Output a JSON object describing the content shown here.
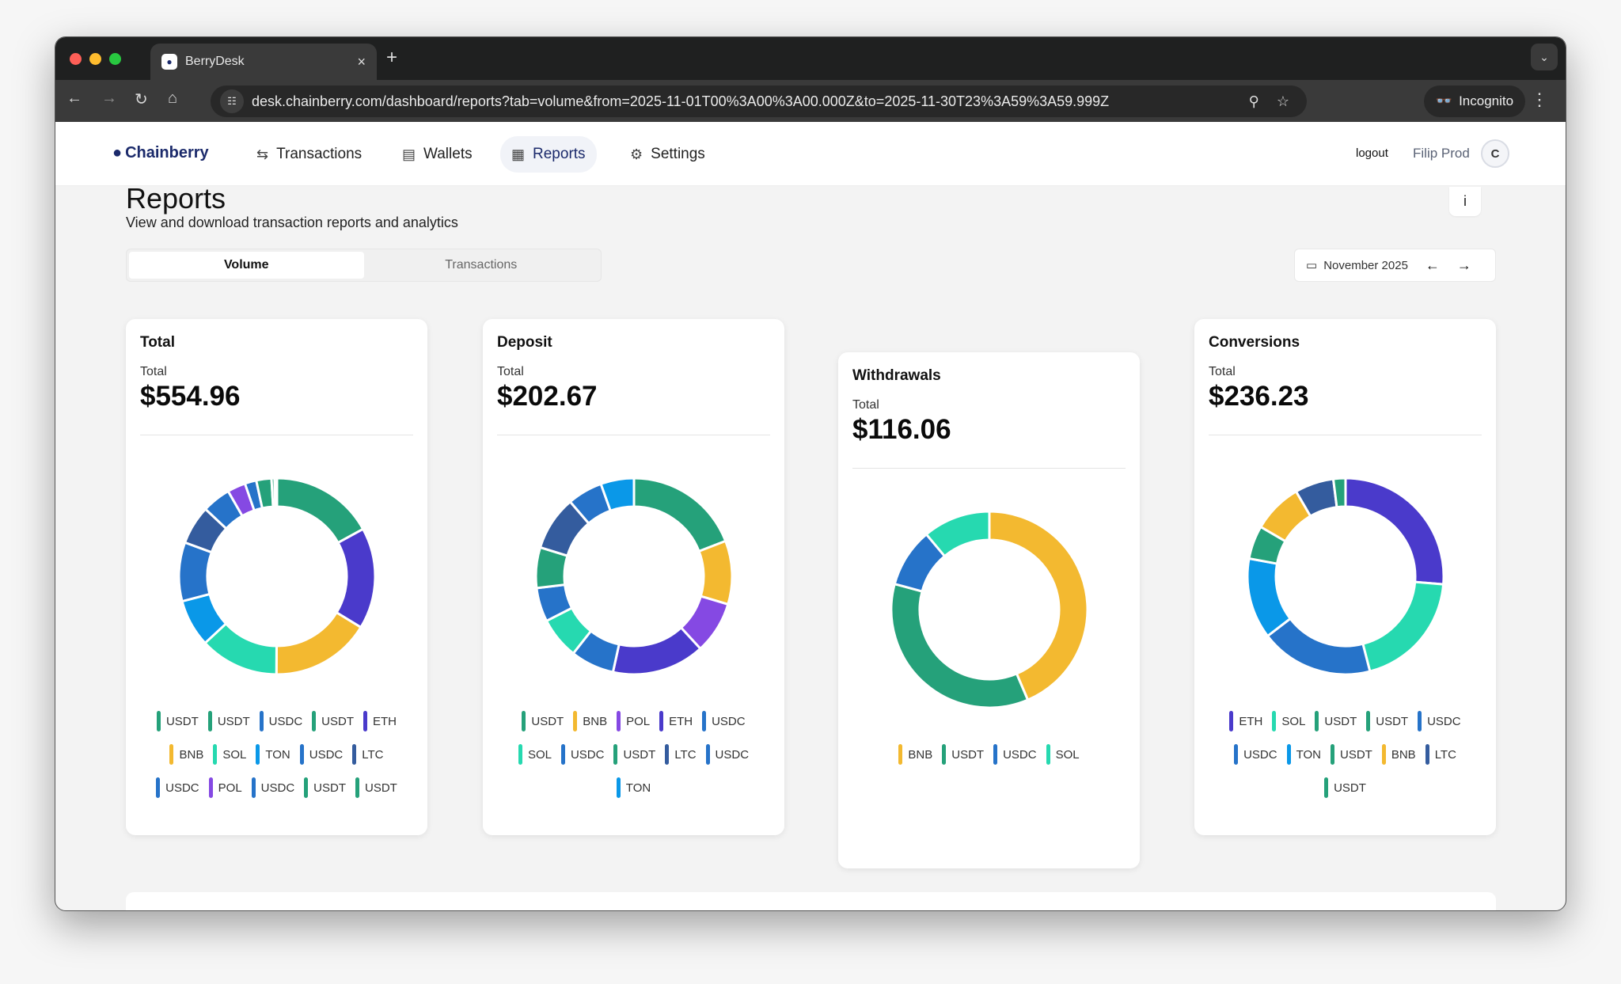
{
  "browser": {
    "tab_title": "BerryDesk",
    "url": "desk.chainberry.com/dashboard/reports?tab=volume&from=2025-11-01T00%3A00%3A00.000Z&to=2025-11-30T23%3A59%3A59.999Z",
    "incognito_label": "Incognito"
  },
  "nav": {
    "logo": "Chainberry",
    "items": [
      {
        "label": "Transactions",
        "icon": "arrows-swap-icon"
      },
      {
        "label": "Wallets",
        "icon": "wallet-icon"
      },
      {
        "label": "Reports",
        "icon": "report-icon",
        "active": true
      },
      {
        "label": "Settings",
        "icon": "gear-icon"
      }
    ],
    "logout": "logout",
    "user": "Filip Prod",
    "avatar": "C"
  },
  "page": {
    "title": "Reports",
    "subtitle": "View and download transaction reports and analytics",
    "info": "i",
    "tabs": [
      {
        "label": "Volume",
        "active": true
      },
      {
        "label": "Transactions",
        "active": false
      }
    ],
    "period": "November 2025"
  },
  "colors": {
    "USDT": "#25a17a",
    "ETH": "#4a3acb",
    "BNB": "#f3b930",
    "SOL": "#26d9b0",
    "TON": "#0a98e8",
    "USDC": "#2673c9",
    "LTC": "#345c9e",
    "POL": "#8549e3"
  },
  "chart_data": [
    {
      "type": "pie",
      "title": "Total",
      "total_label": "Total",
      "total": "$554.96",
      "segments_share_percent": [
        {
          "label": "USDT",
          "value": 17
        },
        {
          "label": "ETH",
          "value": 16.7
        },
        {
          "label": "BNB",
          "value": 16.4
        },
        {
          "label": "SOL",
          "value": 13
        },
        {
          "label": "TON",
          "value": 7.8
        },
        {
          "label": "USDC",
          "value": 9.7
        },
        {
          "label": "LTC",
          "value": 6.4
        },
        {
          "label": "USDC",
          "value": 4.7
        },
        {
          "label": "POL",
          "value": 3
        },
        {
          "label": "USDC",
          "value": 1.9
        },
        {
          "label": "USDT",
          "value": 2.5
        },
        {
          "label": "USDT",
          "value": 0.5
        },
        {
          "label": "USDT",
          "value": 0.4
        }
      ],
      "legend": [
        "USDT",
        "USDT",
        "USDC",
        "USDT",
        "ETH",
        "BNB",
        "SOL",
        "TON",
        "USDC",
        "LTC",
        "USDC",
        "POL",
        "USDC",
        "USDT",
        "USDT"
      ]
    },
    {
      "type": "pie",
      "title": "Deposit",
      "total_label": "Total",
      "total": "$202.67",
      "segments_share_percent": [
        {
          "label": "USDT",
          "value": 19.2
        },
        {
          "label": "BNB",
          "value": 10.5
        },
        {
          "label": "POL",
          "value": 8.6
        },
        {
          "label": "ETH",
          "value": 15.3
        },
        {
          "label": "USDC",
          "value": 7.2
        },
        {
          "label": "SOL",
          "value": 6.9
        },
        {
          "label": "USDC",
          "value": 5.6
        },
        {
          "label": "USDT",
          "value": 6.7
        },
        {
          "label": "LTC",
          "value": 9
        },
        {
          "label": "USDC",
          "value": 5.8
        },
        {
          "label": "TON",
          "value": 5.5
        }
      ],
      "legend": [
        "USDT",
        "BNB",
        "POL",
        "ETH",
        "USDC",
        "SOL",
        "USDC",
        "USDT",
        "LTC",
        "USDC",
        "TON"
      ]
    },
    {
      "type": "pie",
      "title": "Withdrawals",
      "total_label": "Total",
      "total": "$116.06",
      "segments_share_percent": [
        {
          "label": "BNB",
          "value": 43.6
        },
        {
          "label": "USDT",
          "value": 35.6
        },
        {
          "label": "USDC",
          "value": 9.7
        },
        {
          "label": "SOL",
          "value": 11.1
        }
      ],
      "legend": [
        "BNB",
        "USDT",
        "USDC",
        "SOL"
      ]
    },
    {
      "type": "pie",
      "title": "Conversions",
      "total_label": "Total",
      "total": "$236.23",
      "segments_share_percent": [
        {
          "label": "ETH",
          "value": 26.3
        },
        {
          "label": "SOL",
          "value": 19.7
        },
        {
          "label": "USDC",
          "value": 18.6
        },
        {
          "label": "TON",
          "value": 13.3
        },
        {
          "label": "USDT",
          "value": 5.5
        },
        {
          "label": "BNB",
          "value": 8.2
        },
        {
          "label": "LTC",
          "value": 6.4
        },
        {
          "label": "USDT",
          "value": 2
        }
      ],
      "legend": [
        "ETH",
        "SOL",
        "USDT",
        "USDT",
        "USDC",
        "USDC",
        "TON",
        "USDT",
        "BNB",
        "LTC",
        "USDT"
      ]
    }
  ]
}
